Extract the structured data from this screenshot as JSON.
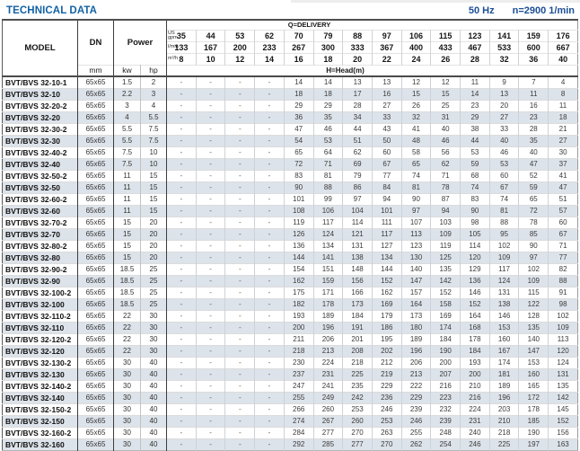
{
  "page": {
    "title": "TECHNICAL DATA",
    "frequency": "50 Hz",
    "speed": "n=2900 1/min"
  },
  "colors": {
    "title_accent": "#1262a6",
    "specs_accent": "#1b4f96",
    "row_alt": "#dde3ea"
  },
  "table": {
    "header": {
      "model_label": "MODEL",
      "dn_label": "DN",
      "dn_unit": "mm",
      "power_label": "Power",
      "power_unit_kw": "kw",
      "power_unit_hp": "hp",
      "delivery_title": "Q=DELIVERY",
      "head_title": "H=Head(m)",
      "unit_rows": [
        {
          "label_lines": [
            "US",
            "gpm"
          ],
          "values": [
            "35",
            "44",
            "53",
            "62",
            "70",
            "79",
            "88",
            "97",
            "106",
            "115",
            "123",
            "141",
            "159",
            "176"
          ]
        },
        {
          "label_lines": [
            "l/min"
          ],
          "values": [
            "133",
            "167",
            "200",
            "233",
            "267",
            "300",
            "333",
            "367",
            "400",
            "433",
            "467",
            "533",
            "600",
            "667"
          ]
        },
        {
          "label_lines": [
            "m³/h"
          ],
          "values": [
            "8",
            "10",
            "12",
            "14",
            "16",
            "18",
            "20",
            "22",
            "24",
            "26",
            "28",
            "32",
            "36",
            "40"
          ]
        }
      ]
    },
    "rows": [
      {
        "model": "BVT/BVS 32-10-1",
        "dn": "65x65",
        "kw": "1.5",
        "hp": "2",
        "head": [
          "-",
          "-",
          "-",
          "-",
          "14",
          "14",
          "13",
          "13",
          "12",
          "12",
          "11",
          "9",
          "7",
          "4"
        ]
      },
      {
        "model": "BVT/BVS 32-10",
        "dn": "65x65",
        "kw": "2.2",
        "hp": "3",
        "head": [
          "-",
          "-",
          "-",
          "-",
          "18",
          "18",
          "17",
          "16",
          "15",
          "15",
          "14",
          "13",
          "11",
          "8"
        ]
      },
      {
        "model": "BVT/BVS 32-20-2",
        "dn": "65x65",
        "kw": "3",
        "hp": "4",
        "head": [
          "-",
          "-",
          "-",
          "-",
          "29",
          "29",
          "28",
          "27",
          "26",
          "25",
          "23",
          "20",
          "16",
          "11"
        ]
      },
      {
        "model": "BVT/BVS 32-20",
        "dn": "65x65",
        "kw": "4",
        "hp": "5.5",
        "head": [
          "-",
          "-",
          "-",
          "-",
          "36",
          "35",
          "34",
          "33",
          "32",
          "31",
          "29",
          "27",
          "23",
          "18"
        ]
      },
      {
        "model": "BVT/BVS 32-30-2",
        "dn": "65x65",
        "kw": "5.5",
        "hp": "7.5",
        "head": [
          "-",
          "-",
          "-",
          "-",
          "47",
          "46",
          "44",
          "43",
          "41",
          "40",
          "38",
          "33",
          "28",
          "21"
        ]
      },
      {
        "model": "BVT/BVS 32-30",
        "dn": "65x65",
        "kw": "5.5",
        "hp": "7.5",
        "head": [
          "-",
          "-",
          "-",
          "-",
          "54",
          "53",
          "51",
          "50",
          "48",
          "46",
          "44",
          "40",
          "35",
          "27"
        ]
      },
      {
        "model": "BVT/BVS 32-40-2",
        "dn": "65x65",
        "kw": "7.5",
        "hp": "10",
        "head": [
          "-",
          "-",
          "-",
          "-",
          "65",
          "64",
          "62",
          "60",
          "58",
          "56",
          "53",
          "46",
          "40",
          "30"
        ]
      },
      {
        "model": "BVT/BVS 32-40",
        "dn": "65x65",
        "kw": "7.5",
        "hp": "10",
        "head": [
          "-",
          "-",
          "-",
          "-",
          "72",
          "71",
          "69",
          "67",
          "65",
          "62",
          "59",
          "53",
          "47",
          "37"
        ]
      },
      {
        "model": "BVT/BVS 32-50-2",
        "dn": "65x65",
        "kw": "11",
        "hp": "15",
        "head": [
          "-",
          "-",
          "-",
          "-",
          "83",
          "81",
          "79",
          "77",
          "74",
          "71",
          "68",
          "60",
          "52",
          "41"
        ]
      },
      {
        "model": "BVT/BVS 32-50",
        "dn": "65x65",
        "kw": "11",
        "hp": "15",
        "head": [
          "-",
          "-",
          "-",
          "-",
          "90",
          "88",
          "86",
          "84",
          "81",
          "78",
          "74",
          "67",
          "59",
          "47"
        ]
      },
      {
        "model": "BVT/BVS 32-60-2",
        "dn": "65x65",
        "kw": "11",
        "hp": "15",
        "head": [
          "-",
          "-",
          "-",
          "-",
          "101",
          "99",
          "97",
          "94",
          "90",
          "87",
          "83",
          "74",
          "65",
          "51"
        ]
      },
      {
        "model": "BVT/BVS 32-60",
        "dn": "65x65",
        "kw": "11",
        "hp": "15",
        "head": [
          "-",
          "-",
          "-",
          "-",
          "108",
          "106",
          "104",
          "101",
          "97",
          "94",
          "90",
          "81",
          "72",
          "57"
        ]
      },
      {
        "model": "BVT/BVS 32-70-2",
        "dn": "65x65",
        "kw": "15",
        "hp": "20",
        "head": [
          "-",
          "-",
          "-",
          "-",
          "119",
          "117",
          "114",
          "111",
          "107",
          "103",
          "98",
          "88",
          "78",
          "60"
        ]
      },
      {
        "model": "BVT/BVS 32-70",
        "dn": "65x65",
        "kw": "15",
        "hp": "20",
        "head": [
          "-",
          "-",
          "-",
          "-",
          "126",
          "124",
          "121",
          "117",
          "113",
          "109",
          "105",
          "95",
          "85",
          "67"
        ]
      },
      {
        "model": "BVT/BVS 32-80-2",
        "dn": "65x65",
        "kw": "15",
        "hp": "20",
        "head": [
          "-",
          "-",
          "-",
          "-",
          "136",
          "134",
          "131",
          "127",
          "123",
          "119",
          "114",
          "102",
          "90",
          "71"
        ]
      },
      {
        "model": "BVT/BVS 32-80",
        "dn": "65x65",
        "kw": "15",
        "hp": "20",
        "head": [
          "-",
          "-",
          "-",
          "-",
          "144",
          "141",
          "138",
          "134",
          "130",
          "125",
          "120",
          "109",
          "97",
          "77"
        ]
      },
      {
        "model": "BVT/BVS 32-90-2",
        "dn": "65x65",
        "kw": "18.5",
        "hp": "25",
        "head": [
          "-",
          "-",
          "-",
          "-",
          "154",
          "151",
          "148",
          "144",
          "140",
          "135",
          "129",
          "117",
          "102",
          "82"
        ]
      },
      {
        "model": "BVT/BVS 32-90",
        "dn": "65x65",
        "kw": "18.5",
        "hp": "25",
        "head": [
          "-",
          "-",
          "-",
          "-",
          "162",
          "159",
          "156",
          "152",
          "147",
          "142",
          "136",
          "124",
          "109",
          "88"
        ]
      },
      {
        "model": "BVT/BVS 32-100-2",
        "dn": "65x65",
        "kw": "18.5",
        "hp": "25",
        "head": [
          "-",
          "-",
          "-",
          "-",
          "175",
          "171",
          "166",
          "162",
          "157",
          "152",
          "146",
          "131",
          "115",
          "91"
        ]
      },
      {
        "model": "BVT/BVS 32-100",
        "dn": "65x65",
        "kw": "18.5",
        "hp": "25",
        "head": [
          "-",
          "-",
          "-",
          "-",
          "182",
          "178",
          "173",
          "169",
          "164",
          "158",
          "152",
          "138",
          "122",
          "98"
        ]
      },
      {
        "model": "BVT/BVS 32-110-2",
        "dn": "65x65",
        "kw": "22",
        "hp": "30",
        "head": [
          "-",
          "-",
          "-",
          "-",
          "193",
          "189",
          "184",
          "179",
          "173",
          "169",
          "164",
          "146",
          "128",
          "102"
        ]
      },
      {
        "model": "BVT/BVS 32-110",
        "dn": "65x65",
        "kw": "22",
        "hp": "30",
        "head": [
          "-",
          "-",
          "-",
          "-",
          "200",
          "196",
          "191",
          "186",
          "180",
          "174",
          "168",
          "153",
          "135",
          "109"
        ]
      },
      {
        "model": "BVT/BVS 32-120-2",
        "dn": "65x65",
        "kw": "22",
        "hp": "30",
        "head": [
          "-",
          "-",
          "-",
          "-",
          "211",
          "206",
          "201",
          "195",
          "189",
          "184",
          "178",
          "160",
          "140",
          "113"
        ]
      },
      {
        "model": "BVT/BVS 32-120",
        "dn": "65x65",
        "kw": "22",
        "hp": "30",
        "head": [
          "-",
          "-",
          "-",
          "-",
          "218",
          "213",
          "208",
          "202",
          "196",
          "190",
          "184",
          "167",
          "147",
          "120"
        ]
      },
      {
        "model": "BVT/BVS 32-130-2",
        "dn": "65x65",
        "kw": "30",
        "hp": "40",
        "head": [
          "-",
          "-",
          "-",
          "-",
          "230",
          "224",
          "218",
          "212",
          "206",
          "200",
          "193",
          "174",
          "153",
          "124"
        ]
      },
      {
        "model": "BVT/BVS 32-130",
        "dn": "65x65",
        "kw": "30",
        "hp": "40",
        "head": [
          "-",
          "-",
          "-",
          "-",
          "237",
          "231",
          "225",
          "219",
          "213",
          "207",
          "200",
          "181",
          "160",
          "131"
        ]
      },
      {
        "model": "BVT/BVS 32-140-2",
        "dn": "65x65",
        "kw": "30",
        "hp": "40",
        "head": [
          "-",
          "-",
          "-",
          "-",
          "247",
          "241",
          "235",
          "229",
          "222",
          "216",
          "210",
          "189",
          "165",
          "135"
        ]
      },
      {
        "model": "BVT/BVS 32-140",
        "dn": "65x65",
        "kw": "30",
        "hp": "40",
        "head": [
          "-",
          "-",
          "-",
          "-",
          "255",
          "249",
          "242",
          "236",
          "229",
          "223",
          "216",
          "196",
          "172",
          "142"
        ]
      },
      {
        "model": "BVT/BVS 32-150-2",
        "dn": "65x65",
        "kw": "30",
        "hp": "40",
        "head": [
          "-",
          "-",
          "-",
          "-",
          "266",
          "260",
          "253",
          "246",
          "239",
          "232",
          "224",
          "203",
          "178",
          "145"
        ]
      },
      {
        "model": "BVT/BVS 32-150",
        "dn": "65x65",
        "kw": "30",
        "hp": "40",
        "head": [
          "-",
          "-",
          "-",
          "-",
          "274",
          "267",
          "260",
          "253",
          "246",
          "239",
          "231",
          "210",
          "185",
          "152"
        ]
      },
      {
        "model": "BVT/BVS 32-160-2",
        "dn": "65x65",
        "kw": "30",
        "hp": "40",
        "head": [
          "-",
          "-",
          "-",
          "-",
          "284",
          "277",
          "270",
          "263",
          "255",
          "248",
          "240",
          "218",
          "190",
          "156"
        ]
      },
      {
        "model": "BVT/BVS 32-160",
        "dn": "65x65",
        "kw": "30",
        "hp": "40",
        "head": [
          "-",
          "-",
          "-",
          "-",
          "292",
          "285",
          "277",
          "270",
          "262",
          "254",
          "246",
          "225",
          "197",
          "163"
        ]
      }
    ]
  }
}
